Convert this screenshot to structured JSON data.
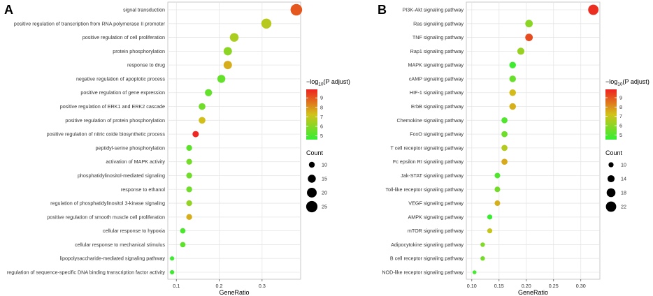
{
  "chart_data": [
    {
      "type": "scatter",
      "panel": "A",
      "xlabel": "GeneRatio",
      "ylabel": "",
      "xlim": [
        0.08,
        0.39
      ],
      "xticks": [
        0.1,
        0.2,
        0.3
      ],
      "tick_labels": [
        "0.1",
        "0.2",
        "0.3"
      ],
      "terms": [
        "signal transduction",
        "positive regulation of transcription from RNA polymerase II promoter",
        "positive regulation of cell proliferation",
        "protein phosphorylation",
        "response to drug",
        "negative regulation of apoptotic process",
        "positive regulation of gene expression",
        "positive regulation of ERK1 and ERK2 cascade",
        "positive regulation of protein phosphorylation",
        "positive regulation of nitric oxide biosynthetic process",
        "peptidyl-serine phosphorylation",
        "activation of MAPK activity",
        "phosphatidylinositol-mediated signaling",
        "response to ethanol",
        "regulation of phosphatidylinositol 3-kinase signaling",
        "positive regulation of smooth muscle cell proliferation",
        "cellular response to hypoxia",
        "cellular response to mechanical stimulus",
        "lipopolysaccharide-mediated signaling pathway",
        "regulation of sequence-specific DNA binding transcription factor activity"
      ],
      "gene_ratio": [
        0.38,
        0.31,
        0.235,
        0.22,
        0.22,
        0.205,
        0.175,
        0.16,
        0.16,
        0.145,
        0.13,
        0.13,
        0.13,
        0.13,
        0.13,
        0.13,
        0.115,
        0.115,
        0.09,
        0.09
      ],
      "count": [
        26,
        21,
        17,
        16,
        16,
        15,
        13,
        12,
        12,
        11,
        10,
        10,
        10,
        10,
        10,
        10,
        9,
        9,
        7,
        7
      ],
      "neg_log10_padj": [
        9.0,
        6.8,
        6.6,
        6.1,
        7.6,
        5.4,
        5.4,
        5.6,
        7.3,
        9.8,
        5.3,
        5.7,
        5.6,
        5.6,
        6.2,
        7.6,
        5.0,
        5.3,
        4.8,
        4.8
      ],
      "color_legend": {
        "title_pre": "−log",
        "title_sub": "10",
        "title_post": "(P adjust)",
        "ticks": [
          5,
          6,
          7,
          8,
          9
        ],
        "range": [
          4.6,
          9.9
        ]
      },
      "size_legend": {
        "title": "Count",
        "values": [
          10,
          15,
          20,
          25
        ],
        "labels": [
          "10",
          "15",
          "20",
          "25"
        ]
      }
    },
    {
      "type": "scatter",
      "panel": "B",
      "xlabel": "GeneRatio",
      "ylabel": "",
      "xlim": [
        0.09,
        0.335
      ],
      "xticks": [
        0.1,
        0.15,
        0.2,
        0.25,
        0.3
      ],
      "tick_labels": [
        "0.10",
        "0.15",
        "0.20",
        "0.25",
        "0.30"
      ],
      "terms": [
        "PI3K-Akt signaling pathway",
        "Ras signaling pathway",
        "TNF signaling pathway",
        "Rap1 signaling pathway",
        "MAPK signaling pathway",
        "cAMP signaling pathway",
        "HIF-1 signaling pathway",
        "ErbB signaling pathway",
        "Chemokine signaling pathway",
        "FoxO signaling pathway",
        "T cell receptor signaling pathway",
        "Fc epsilon RI signaling pathway",
        "Jak-STAT signaling pathway",
        "Toll-like receptor signaling pathway",
        "VEGF signaling pathway",
        "AMPK signaling pathway",
        "mTOR signaling pathway",
        "Adipocytokine signaling pathway",
        "B cell receptor signaling pathway",
        "NOD-like receptor signaling pathway"
      ],
      "gene_ratio": [
        0.323,
        0.205,
        0.205,
        0.19,
        0.175,
        0.175,
        0.175,
        0.175,
        0.16,
        0.16,
        0.16,
        0.16,
        0.147,
        0.147,
        0.147,
        0.133,
        0.133,
        0.12,
        0.12,
        0.105
      ],
      "count": [
        22,
        15,
        15,
        14,
        13,
        13,
        13,
        13,
        12,
        12,
        12,
        12,
        11,
        11,
        11,
        10,
        10,
        9,
        9,
        8
      ],
      "neg_log10_padj": [
        9.7,
        6.0,
        9.2,
        6.2,
        4.7,
        5.4,
        7.3,
        7.5,
        5.0,
        5.5,
        6.7,
        7.6,
        5.0,
        5.6,
        7.5,
        4.6,
        7.0,
        5.8,
        5.6,
        4.8
      ],
      "color_legend": {
        "title_pre": "−log",
        "title_sub": "10",
        "title_post": "(P adjust)",
        "ticks": [
          5,
          6,
          7,
          8,
          9
        ],
        "range": [
          4.5,
          9.9
        ]
      },
      "size_legend": {
        "title": "Count",
        "values": [
          10,
          14,
          18,
          22
        ],
        "labels": [
          "10",
          "14",
          "18",
          "22"
        ]
      }
    }
  ]
}
